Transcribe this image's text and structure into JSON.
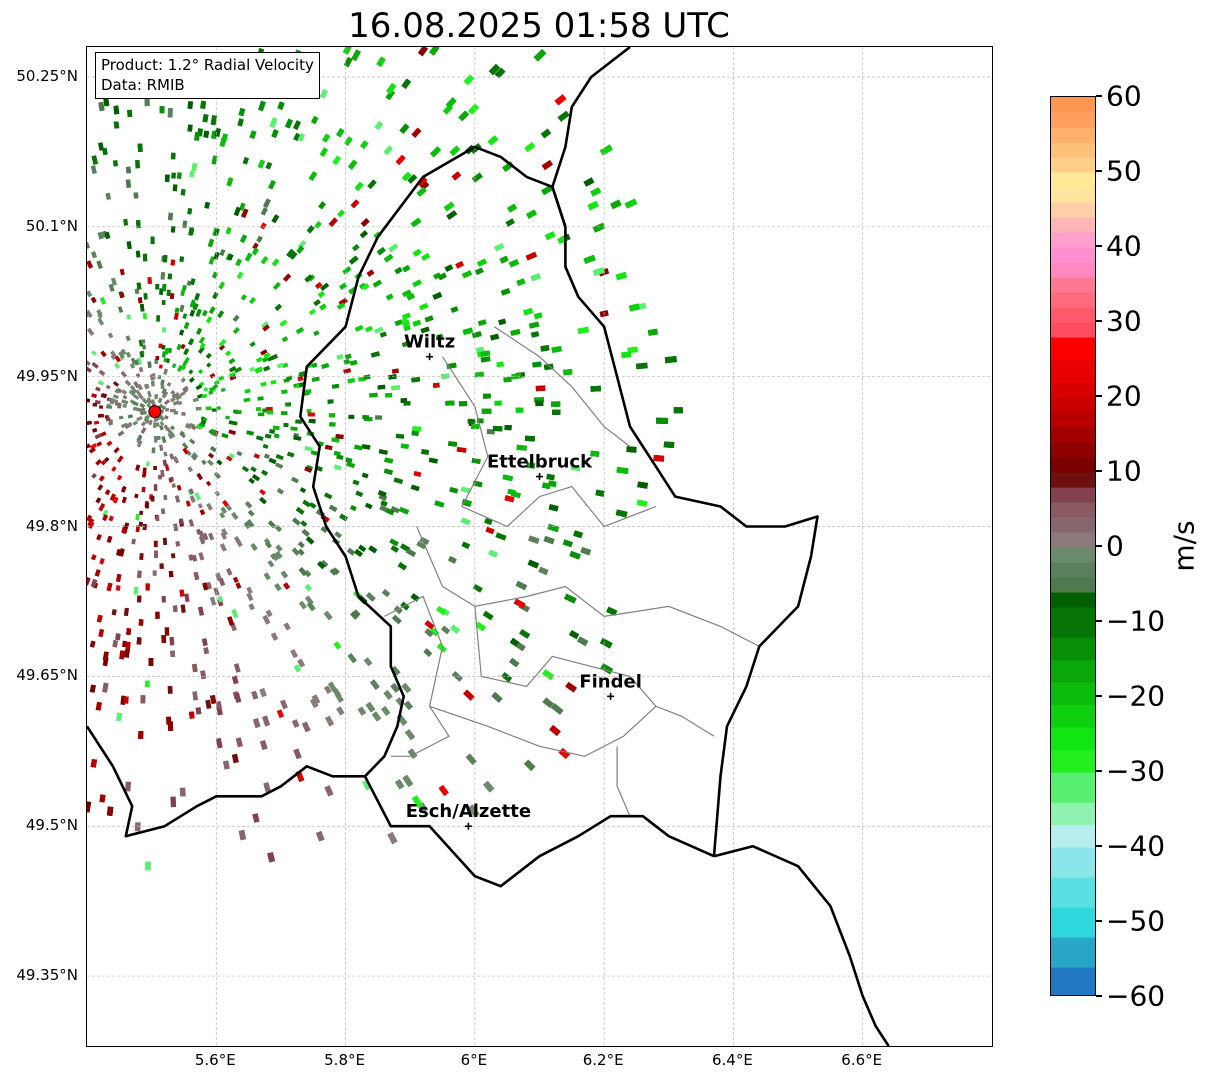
{
  "title": "16.08.2025 01:58 UTC",
  "infobox": {
    "product": "Product: 1.2° Radial Velocity",
    "source": "Data: RMIB"
  },
  "axes": {
    "lon_range": [
      5.4,
      6.8
    ],
    "lat_range": [
      49.28,
      50.28
    ],
    "lat_ticks": [
      {
        "value": 50.25,
        "label": "50.25°N"
      },
      {
        "value": 50.1,
        "label": "50.1°N"
      },
      {
        "value": 49.95,
        "label": "49.95°N"
      },
      {
        "value": 49.8,
        "label": "49.8°N"
      },
      {
        "value": 49.65,
        "label": "49.65°N"
      },
      {
        "value": 49.5,
        "label": "49.5°N"
      },
      {
        "value": 49.35,
        "label": "49.35°N"
      }
    ],
    "lon_ticks": [
      {
        "value": 5.6,
        "label": "5.6°E"
      },
      {
        "value": 5.8,
        "label": "5.8°E"
      },
      {
        "value": 6.0,
        "label": "6°E"
      },
      {
        "value": 6.2,
        "label": "6.2°E"
      },
      {
        "value": 6.4,
        "label": "6.4°E"
      },
      {
        "value": 6.6,
        "label": "6.6°E"
      }
    ],
    "grid": true
  },
  "cities": [
    {
      "name": "Wiltz",
      "lon": 5.93,
      "lat": 49.97
    },
    {
      "name": "Ettelbruck",
      "lon": 6.1,
      "lat": 49.85
    },
    {
      "name": "Findel",
      "lon": 6.21,
      "lat": 49.63
    },
    {
      "name": "Esch/Alzette",
      "lon": 5.99,
      "lat": 49.5
    }
  ],
  "radar_site": {
    "lon": 5.505,
    "lat": 49.915,
    "color": "#ff0000"
  },
  "colorbar": {
    "unit": "m/s",
    "min": -60,
    "max": 60,
    "ticks": [
      {
        "value": 60,
        "label": "60"
      },
      {
        "value": 50,
        "label": "50"
      },
      {
        "value": 40,
        "label": "40"
      },
      {
        "value": 30,
        "label": "30"
      },
      {
        "value": 20,
        "label": "20"
      },
      {
        "value": 10,
        "label": "10"
      },
      {
        "value": 0,
        "label": "0"
      },
      {
        "value": -10,
        "label": "−10"
      },
      {
        "value": -20,
        "label": "−20"
      },
      {
        "value": -30,
        "label": "−30"
      },
      {
        "value": -40,
        "label": "−40"
      },
      {
        "value": -50,
        "label": "−50"
      },
      {
        "value": -60,
        "label": "−60"
      }
    ],
    "segments": [
      {
        "from": -60,
        "to": -56,
        "color": "#1f78c0"
      },
      {
        "from": -56,
        "to": -52,
        "color": "#27a6c8"
      },
      {
        "from": -52,
        "to": -48,
        "color": "#2fd8dc"
      },
      {
        "from": -48,
        "to": -44,
        "color": "#58e0e2"
      },
      {
        "from": -44,
        "to": -40,
        "color": "#8ae6e8"
      },
      {
        "from": -40,
        "to": -37,
        "color": "#b6eef0"
      },
      {
        "from": -37,
        "to": -34,
        "color": "#8ff2b0"
      },
      {
        "from": -34,
        "to": -30,
        "color": "#58f070"
      },
      {
        "from": -30,
        "to": -27,
        "color": "#22f01e"
      },
      {
        "from": -27,
        "to": -24,
        "color": "#12e612"
      },
      {
        "from": -24,
        "to": -21,
        "color": "#0ed00e"
      },
      {
        "from": -21,
        "to": -18,
        "color": "#0cbc0c"
      },
      {
        "from": -18,
        "to": -15,
        "color": "#0aa70a"
      },
      {
        "from": -15,
        "to": -12,
        "color": "#088f08"
      },
      {
        "from": -12,
        "to": -8,
        "color": "#067506"
      },
      {
        "from": -8,
        "to": -6,
        "color": "#006000"
      },
      {
        "from": -6,
        "to": -4,
        "color": "#4e7a4e"
      },
      {
        "from": -4,
        "to": -2,
        "color": "#5c805c"
      },
      {
        "from": -2,
        "to": 0,
        "color": "#6b8a6b"
      },
      {
        "from": 0,
        "to": 2,
        "color": "#8a7a7a"
      },
      {
        "from": 2,
        "to": 4,
        "color": "#88666e"
      },
      {
        "from": 4,
        "to": 6,
        "color": "#8a5a62"
      },
      {
        "from": 6,
        "to": 8,
        "color": "#824050"
      },
      {
        "from": 8,
        "to": 10,
        "color": "#6e1010"
      },
      {
        "from": 10,
        "to": 12,
        "color": "#7a0000"
      },
      {
        "from": 12,
        "to": 14,
        "color": "#8f0000"
      },
      {
        "from": 14,
        "to": 16,
        "color": "#a30000"
      },
      {
        "from": 16,
        "to": 18,
        "color": "#b80000"
      },
      {
        "from": 18,
        "to": 20,
        "color": "#c80000"
      },
      {
        "from": 20,
        "to": 22,
        "color": "#d80000"
      },
      {
        "from": 22,
        "to": 25,
        "color": "#e80000"
      },
      {
        "from": 25,
        "to": 28,
        "color": "#fa0000"
      },
      {
        "from": 28,
        "to": 30,
        "color": "#ff4c5e"
      },
      {
        "from": 30,
        "to": 32,
        "color": "#ff5a6c"
      },
      {
        "from": 32,
        "to": 34,
        "color": "#ff6a7c"
      },
      {
        "from": 34,
        "to": 36,
        "color": "#ff7890"
      },
      {
        "from": 36,
        "to": 38,
        "color": "#ff88c2"
      },
      {
        "from": 38,
        "to": 40,
        "color": "#ff90d0"
      },
      {
        "from": 40,
        "to": 42,
        "color": "#ffa0cc"
      },
      {
        "from": 42,
        "to": 44,
        "color": "#ffb4b8"
      },
      {
        "from": 44,
        "to": 46,
        "color": "#ffd0a8"
      },
      {
        "from": 46,
        "to": 48,
        "color": "#ffe4a0"
      },
      {
        "from": 48,
        "to": 50,
        "color": "#ffe898"
      },
      {
        "from": 50,
        "to": 52,
        "color": "#ffd08a"
      },
      {
        "from": 52,
        "to": 54,
        "color": "#ffc07a"
      },
      {
        "from": 54,
        "to": 56,
        "color": "#ffb06a"
      },
      {
        "from": 56,
        "to": 58,
        "color": "#ffa05c"
      },
      {
        "from": 58,
        "to": 60,
        "color": "#ff9650"
      }
    ]
  },
  "boundaries": {
    "national": [
      {
        "name": "lux-west-north",
        "points": [
          [
            5.4,
            49.6
          ],
          [
            5.44,
            49.56
          ],
          [
            5.47,
            49.52
          ],
          [
            5.46,
            49.49
          ],
          [
            5.52,
            49.5
          ],
          [
            5.57,
            49.52
          ],
          [
            5.6,
            49.53
          ],
          [
            5.67,
            49.53
          ],
          [
            5.7,
            49.54
          ],
          [
            5.74,
            49.56
          ],
          [
            5.78,
            49.55
          ],
          [
            5.83,
            49.55
          ],
          [
            5.86,
            49.57
          ],
          [
            5.88,
            49.6
          ],
          [
            5.89,
            49.63
          ],
          [
            5.87,
            49.66
          ],
          [
            5.87,
            49.7
          ],
          [
            5.82,
            49.73
          ],
          [
            5.8,
            49.77
          ],
          [
            5.77,
            49.8
          ],
          [
            5.75,
            49.84
          ],
          [
            5.76,
            49.88
          ],
          [
            5.73,
            49.91
          ],
          [
            5.74,
            49.96
          ],
          [
            5.8,
            50.0
          ],
          [
            5.82,
            50.05
          ],
          [
            5.85,
            50.09
          ],
          [
            5.92,
            50.15
          ],
          [
            6.0,
            50.18
          ],
          [
            6.04,
            50.17
          ],
          [
            6.08,
            50.15
          ],
          [
            6.12,
            50.14
          ],
          [
            6.14,
            50.1
          ]
        ]
      },
      {
        "name": "lux-east",
        "points": [
          [
            6.14,
            50.1
          ],
          [
            6.14,
            50.06
          ],
          [
            6.16,
            50.03
          ],
          [
            6.2,
            50.0
          ],
          [
            6.22,
            49.95
          ],
          [
            6.24,
            49.9
          ],
          [
            6.28,
            49.86
          ],
          [
            6.31,
            49.83
          ],
          [
            6.38,
            49.82
          ],
          [
            6.42,
            49.8
          ],
          [
            6.48,
            49.8
          ],
          [
            6.53,
            49.81
          ],
          [
            6.52,
            49.77
          ],
          [
            6.5,
            49.72
          ],
          [
            6.44,
            49.68
          ],
          [
            6.42,
            49.64
          ],
          [
            6.39,
            49.6
          ],
          [
            6.38,
            49.55
          ],
          [
            6.37,
            49.47
          ]
        ]
      },
      {
        "name": "lux-south",
        "points": [
          [
            5.83,
            49.55
          ],
          [
            5.87,
            49.5
          ],
          [
            5.93,
            49.5
          ],
          [
            6.0,
            49.45
          ],
          [
            6.04,
            49.44
          ],
          [
            6.1,
            49.47
          ],
          [
            6.16,
            49.49
          ],
          [
            6.21,
            49.51
          ],
          [
            6.26,
            49.51
          ],
          [
            6.3,
            49.49
          ],
          [
            6.37,
            49.47
          ]
        ]
      },
      {
        "name": "de-fr-border",
        "points": [
          [
            6.37,
            49.47
          ],
          [
            6.43,
            49.48
          ],
          [
            6.5,
            49.46
          ],
          [
            6.55,
            49.42
          ],
          [
            6.58,
            49.37
          ],
          [
            6.6,
            49.33
          ],
          [
            6.62,
            49.3
          ],
          [
            6.64,
            49.28
          ]
        ]
      },
      {
        "name": "be-de-north",
        "points": [
          [
            6.14,
            50.1
          ],
          [
            6.12,
            50.14
          ],
          [
            6.14,
            50.18
          ],
          [
            6.15,
            50.22
          ],
          [
            6.18,
            50.25
          ],
          [
            6.24,
            50.28
          ]
        ]
      }
    ],
    "cantons": [
      {
        "name": "canton-north",
        "points": [
          [
            6.03,
            50.0
          ],
          [
            6.1,
            49.97
          ],
          [
            6.15,
            49.94
          ],
          [
            6.2,
            49.9
          ],
          [
            6.24,
            49.88
          ]
        ]
      },
      {
        "name": "canton-north-inner",
        "points": [
          [
            5.95,
            49.97
          ],
          [
            6.0,
            49.92
          ],
          [
            6.02,
            49.87
          ],
          [
            5.98,
            49.82
          ],
          [
            6.05,
            49.8
          ],
          [
            6.1,
            49.83
          ],
          [
            6.15,
            49.84
          ],
          [
            6.2,
            49.8
          ],
          [
            6.28,
            49.82
          ]
        ]
      },
      {
        "name": "canton-middle",
        "points": [
          [
            5.91,
            49.8
          ],
          [
            5.95,
            49.74
          ],
          [
            6.0,
            49.72
          ],
          [
            6.08,
            49.73
          ],
          [
            6.14,
            49.74
          ],
          [
            6.2,
            49.71
          ],
          [
            6.3,
            49.72
          ],
          [
            6.38,
            49.7
          ],
          [
            6.44,
            49.68
          ]
        ]
      },
      {
        "name": "canton-west",
        "points": [
          [
            5.86,
            49.71
          ],
          [
            5.92,
            49.73
          ],
          [
            5.95,
            49.68
          ],
          [
            5.93,
            49.62
          ],
          [
            5.96,
            49.59
          ],
          [
            5.9,
            49.57
          ],
          [
            5.87,
            49.57
          ]
        ]
      },
      {
        "name": "canton-center",
        "points": [
          [
            6.0,
            49.72
          ],
          [
            6.01,
            49.65
          ],
          [
            6.08,
            49.64
          ],
          [
            6.12,
            49.67
          ],
          [
            6.18,
            49.66
          ],
          [
            6.24,
            49.65
          ],
          [
            6.28,
            49.62
          ],
          [
            6.32,
            49.61
          ],
          [
            6.37,
            49.59
          ]
        ]
      },
      {
        "name": "canton-south",
        "points": [
          [
            5.93,
            49.62
          ],
          [
            6.02,
            49.6
          ],
          [
            6.1,
            49.58
          ],
          [
            6.17,
            49.57
          ],
          [
            6.23,
            49.59
          ],
          [
            6.28,
            49.62
          ]
        ]
      },
      {
        "name": "canton-south-east",
        "points": [
          [
            6.22,
            49.58
          ],
          [
            6.22,
            49.54
          ],
          [
            6.24,
            49.51
          ]
        ]
      }
    ]
  }
}
